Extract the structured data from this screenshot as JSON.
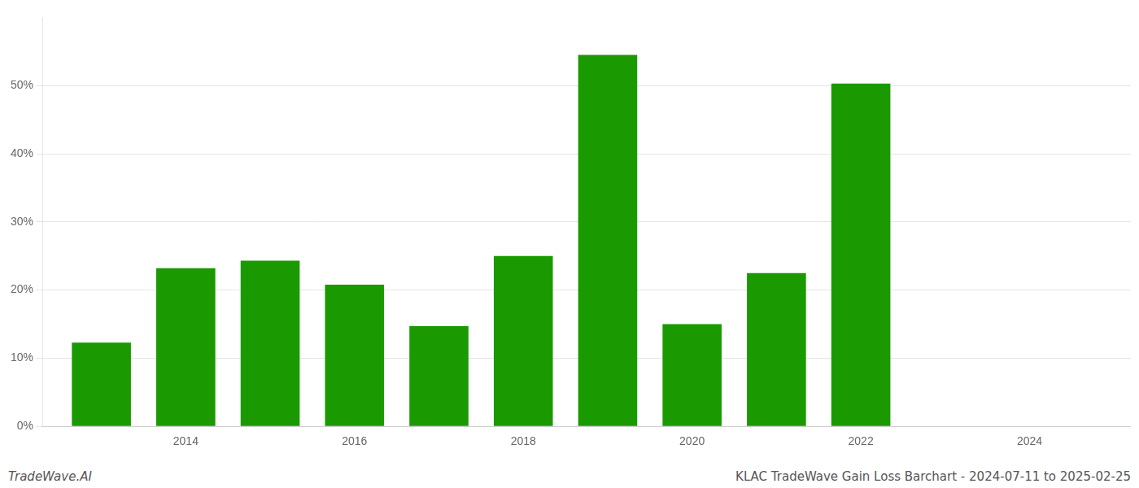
{
  "chart_data": {
    "type": "bar",
    "title": "KLAC TradeWave Gain Loss Barchart - 2024-07-11 to 2025-02-25",
    "annotations": [
      "TradeWave.AI"
    ],
    "x": [
      2013,
      2014,
      2015,
      2016,
      2017,
      2018,
      2019,
      2020,
      2021,
      2022,
      2023
    ],
    "values": [
      0.123,
      0.232,
      0.243,
      0.208,
      0.147,
      0.25,
      0.545,
      0.15,
      0.225,
      0.503,
      0.0
    ],
    "color": "#1a9a00",
    "xlim": [
      2012.3,
      2025.2
    ],
    "xticks": [
      2014,
      2016,
      2018,
      2020,
      2022,
      2024
    ],
    "ylim": [
      0,
      0.6
    ],
    "yticks": [
      {
        "value": 0.0,
        "label": "0%"
      },
      {
        "value": 0.1,
        "label": "10%"
      },
      {
        "value": 0.2,
        "label": "20%"
      },
      {
        "value": 0.3,
        "label": "30%"
      },
      {
        "value": 0.4,
        "label": "40%"
      },
      {
        "value": 0.5,
        "label": "50%"
      }
    ],
    "grid": "y"
  }
}
